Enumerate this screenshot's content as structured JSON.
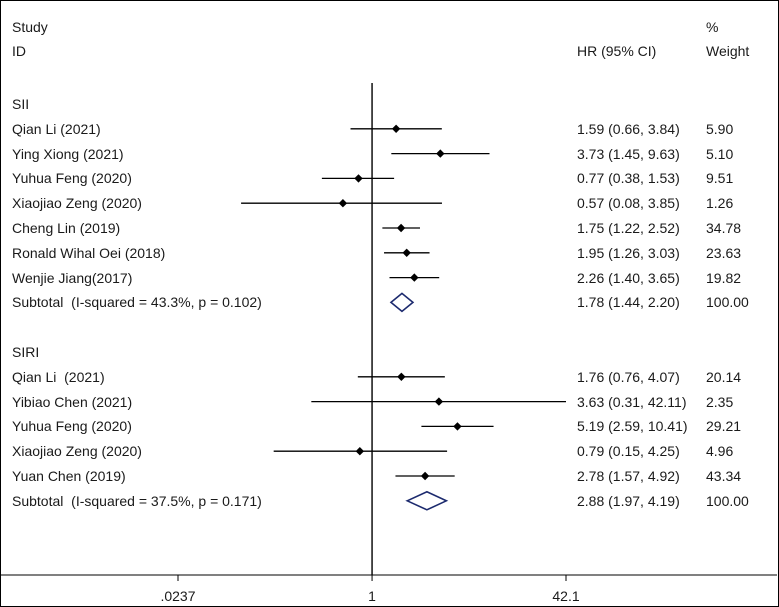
{
  "header": {
    "study": "Study",
    "id": "ID",
    "hr": "HR (95% CI)",
    "pct": "%",
    "weight": "Weight"
  },
  "chart_data": {
    "type": "forest",
    "xscale": "log",
    "xlim": [
      0.0237,
      42.1
    ],
    "xticks": [
      {
        "value": 0.0237,
        "label": ".0237"
      },
      {
        "value": 1,
        "label": "1"
      },
      {
        "value": 42.1,
        "label": "42.1"
      }
    ],
    "reference_line": 1,
    "groups": [
      {
        "name": "SII",
        "studies": [
          {
            "label": "Qian Li (2021)",
            "hr": 1.59,
            "lo": 0.66,
            "hi": 3.84,
            "ci_text": "1.59 (0.66, 3.84)",
            "weight": "5.90"
          },
          {
            "label": "Ying Xiong (2021)",
            "hr": 3.73,
            "lo": 1.45,
            "hi": 9.63,
            "ci_text": "3.73 (1.45, 9.63)",
            "weight": "5.10"
          },
          {
            "label": "Yuhua Feng (2020)",
            "hr": 0.77,
            "lo": 0.38,
            "hi": 1.53,
            "ci_text": "0.77 (0.38, 1.53)",
            "weight": "9.51"
          },
          {
            "label": "Xiaojiao Zeng (2020)",
            "hr": 0.57,
            "lo": 0.08,
            "hi": 3.85,
            "ci_text": "0.57 (0.08, 3.85)",
            "weight": "1.26"
          },
          {
            "label": "Cheng Lin (2019)",
            "hr": 1.75,
            "lo": 1.22,
            "hi": 2.52,
            "ci_text": "1.75 (1.22, 2.52)",
            "weight": "34.78"
          },
          {
            "label": "Ronald Wihal Oei (2018)",
            "hr": 1.95,
            "lo": 1.26,
            "hi": 3.03,
            "ci_text": "1.95 (1.26, 3.03)",
            "weight": "23.63"
          },
          {
            "label": "Wenjie Jiang(2017)",
            "hr": 2.26,
            "lo": 1.4,
            "hi": 3.65,
            "ci_text": "2.26 (1.40, 3.65)",
            "weight": "19.82"
          }
        ],
        "subtotal": {
          "label": "Subtotal  (I-squared = 43.3%, p = 0.102)",
          "hr": 1.78,
          "lo": 1.44,
          "hi": 2.2,
          "ci_text": "1.78 (1.44, 2.20)",
          "weight": "100.00"
        }
      },
      {
        "name": "SIRI",
        "studies": [
          {
            "label": "Qian Li  (2021)",
            "hr": 1.76,
            "lo": 0.76,
            "hi": 4.07,
            "ci_text": "1.76 (0.76, 4.07)",
            "weight": "20.14"
          },
          {
            "label": "Yibiao Chen (2021)",
            "hr": 3.63,
            "lo": 0.31,
            "hi": 42.11,
            "ci_text": "3.63 (0.31, 42.11)",
            "weight": "2.35"
          },
          {
            "label": "Yuhua Feng (2020)",
            "hr": 5.19,
            "lo": 2.59,
            "hi": 10.41,
            "ci_text": "5.19 (2.59, 10.41)",
            "weight": "29.21"
          },
          {
            "label": "Xiaojiao Zeng (2020)",
            "hr": 0.79,
            "lo": 0.15,
            "hi": 4.25,
            "ci_text": "0.79 (0.15, 4.25)",
            "weight": "4.96"
          },
          {
            "label": "Yuan Chen (2019)",
            "hr": 2.78,
            "lo": 1.57,
            "hi": 4.92,
            "ci_text": "2.78 (1.57, 4.92)",
            "weight": "43.34"
          }
        ],
        "subtotal": {
          "label": "Subtotal  (I-squared = 37.5%, p = 0.171)",
          "hr": 2.88,
          "lo": 1.97,
          "hi": 4.19,
          "ci_text": "2.88 (1.97, 4.19)",
          "weight": "100.00"
        }
      }
    ]
  }
}
